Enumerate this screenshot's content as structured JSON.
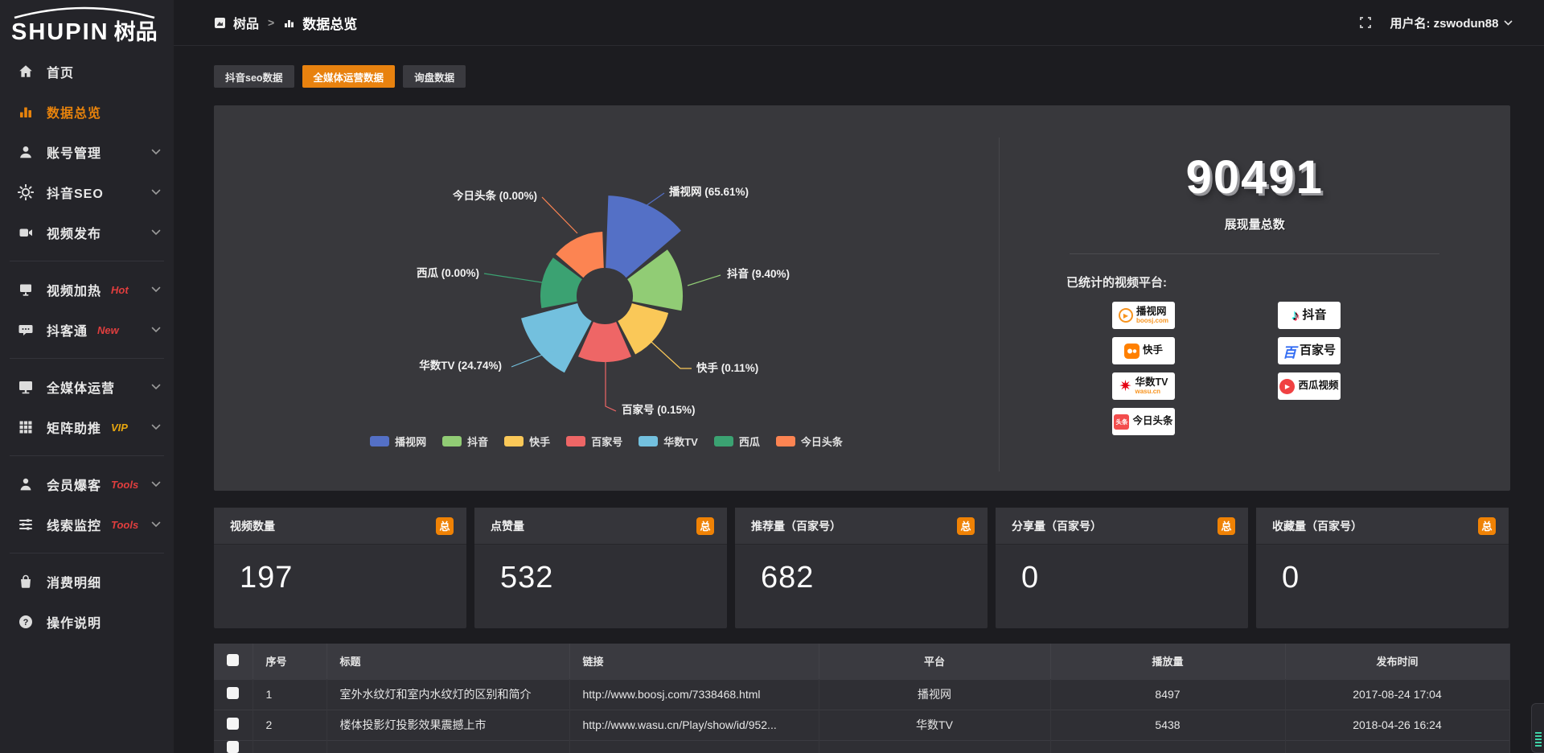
{
  "brand": {
    "latin": "SHUPIN",
    "cjk": "树品"
  },
  "topbar": {
    "breadcrumb": {
      "root": "树品",
      "separator": ">",
      "current": "数据总览"
    },
    "user_label": "用户名: zswodun88"
  },
  "sidebar": {
    "items": [
      {
        "id": "home",
        "icon": "home",
        "label": "首页"
      },
      {
        "id": "data-overview",
        "icon": "bar-chart",
        "label": "数据总览",
        "active": true
      },
      {
        "id": "account-management",
        "icon": "user",
        "label": "账号管理",
        "chevron": true
      },
      {
        "id": "douyin-seo",
        "icon": "gear",
        "label": "抖音SEO",
        "chevron": true
      },
      {
        "id": "video-publish",
        "icon": "video-camera",
        "label": "视频发布",
        "chevron": true
      },
      {
        "divider": true
      },
      {
        "id": "video-heating",
        "icon": "screen",
        "label": "视频加热",
        "badge": "Hot",
        "badge_color": "#e03e3e",
        "chevron": true
      },
      {
        "id": "douketong",
        "icon": "chat-bubble",
        "label": "抖客通",
        "badge": "New",
        "badge_color": "#e03e3e",
        "chevron": true
      },
      {
        "divider": true
      },
      {
        "id": "omni-media",
        "icon": "monitor",
        "label": "全媒体运营",
        "chevron": true
      },
      {
        "id": "matrix-boost",
        "icon": "grid",
        "label": "矩阵助推",
        "badge": "VIP",
        "badge_color": "#e7a60f",
        "chevron": true
      },
      {
        "divider": true
      },
      {
        "id": "member-baoke",
        "icon": "person",
        "label": "会员爆客",
        "badge": "Tools",
        "badge_color": "#e03e3e",
        "chevron": true
      },
      {
        "id": "clue-monitor",
        "icon": "sliders",
        "label": "线索监控",
        "badge": "Tools",
        "badge_color": "#e03e3e",
        "chevron": true
      },
      {
        "divider": true
      },
      {
        "id": "consume-detail",
        "icon": "bag",
        "label": "消费明细"
      },
      {
        "id": "operation-guide",
        "icon": "help-circle",
        "label": "操作说明"
      }
    ]
  },
  "tabs": [
    {
      "id": "douyin-seo-data",
      "label": "抖音seo数据",
      "active": false
    },
    {
      "id": "omni-media-data",
      "label": "全媒体运营数据",
      "active": true
    },
    {
      "id": "inquiry-data",
      "label": "询盘数据",
      "active": false
    }
  ],
  "chart_data": {
    "type": "pie",
    "variant": "nightingale-rose",
    "legend_position": "bottom",
    "label_format": "{name} ({pct})",
    "series": [
      {
        "name": "播视网",
        "value": 65.61,
        "pct_label": "65.61%",
        "color": "#5470c6"
      },
      {
        "name": "抖音",
        "value": 9.4,
        "pct_label": "9.40%",
        "color": "#91cc75"
      },
      {
        "name": "快手",
        "value": 0.11,
        "pct_label": "0.11%",
        "color": "#fac858"
      },
      {
        "name": "百家号",
        "value": 0.15,
        "pct_label": "0.15%",
        "color": "#ee6666"
      },
      {
        "name": "华数TV",
        "value": 24.74,
        "pct_label": "24.74%",
        "color": "#73c0de"
      },
      {
        "name": "西瓜",
        "value": 0.0,
        "pct_label": "0.00%",
        "color": "#3ba272"
      },
      {
        "name": "今日头条",
        "value": 0.0,
        "pct_label": "0.00%",
        "color": "#fc8452"
      }
    ]
  },
  "summary": {
    "value": "90491",
    "caption": "展现量总数",
    "platforms_heading": "已统计的视频平台:",
    "logos": [
      {
        "id": "boosj",
        "label": "播视网",
        "sub": "boosj.com"
      },
      {
        "id": "kuaishou",
        "label": "快手"
      },
      {
        "id": "wasu",
        "label": "华数TV",
        "sub": "wasu.cn"
      },
      {
        "id": "toutiao",
        "label": "今日头条",
        "icon_text": "头条"
      },
      {
        "id": "douyin",
        "label": "抖音"
      },
      {
        "id": "baijiahao",
        "label": "百家号",
        "icon_text": "百"
      },
      {
        "id": "xigua",
        "label": "西瓜视频"
      }
    ]
  },
  "cards": [
    {
      "title": "视频数量",
      "badge": "总",
      "value": "197"
    },
    {
      "title": "点赞量",
      "badge": "总",
      "value": "532"
    },
    {
      "title": "推荐量（百家号）",
      "badge": "总",
      "value": "682"
    },
    {
      "title": "分享量（百家号）",
      "badge": "总",
      "value": "0"
    },
    {
      "title": "收藏量（百家号）",
      "badge": "总",
      "value": "0"
    }
  ],
  "table": {
    "columns": [
      "",
      "序号",
      "标题",
      "链接",
      "平台",
      "播放量",
      "发布时间"
    ],
    "rows": [
      {
        "num": "1",
        "title": "室外水纹灯和室内水纹灯的区别和简介",
        "link": "http://www.boosj.com/7338468.html",
        "platform": "播视网",
        "plays": "8497",
        "time": "2017-08-24 17:04"
      },
      {
        "num": "2",
        "title": "楼体投影灯投影效果震撼上市",
        "link": "http://www.wasu.cn/Play/show/id/952...",
        "platform": "华数TV",
        "plays": "5438",
        "time": "2018-04-26 16:24"
      }
    ]
  }
}
